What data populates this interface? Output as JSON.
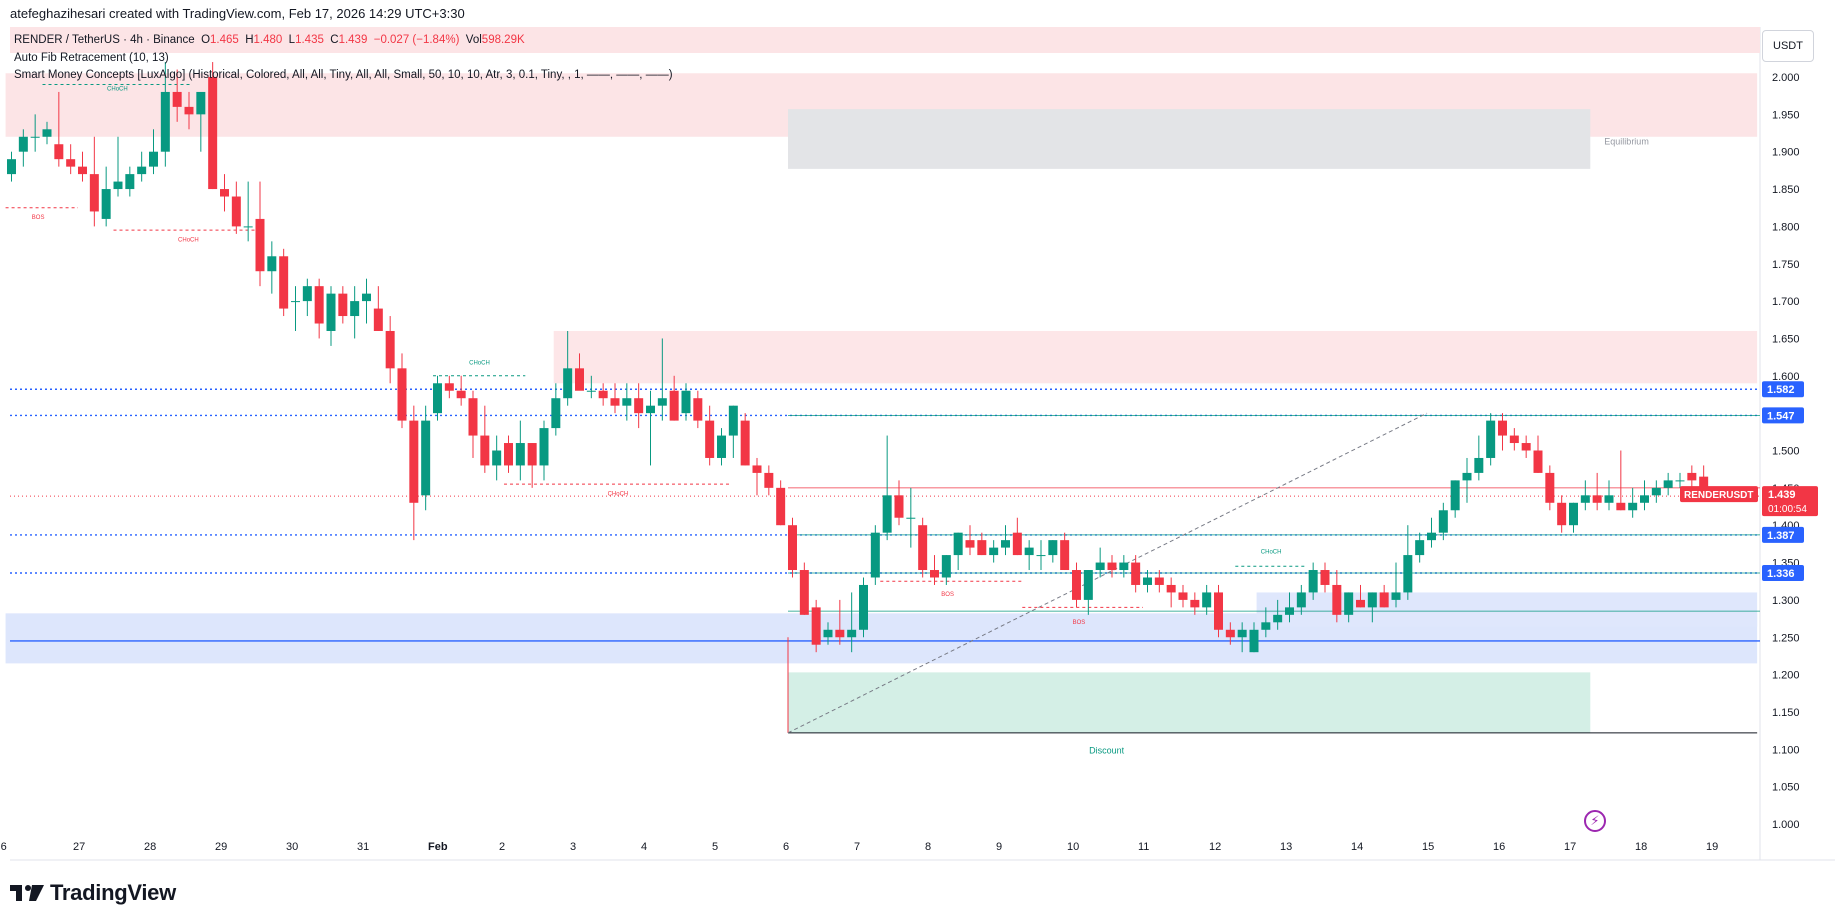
{
  "header": {
    "attribution": "atefeghazihesari created with TradingView.com, Feb 17, 2026 14:29 UTC+3:30"
  },
  "legend": {
    "symbol": "RENDER / TetherUS · 4h · Binance",
    "open_label": "O",
    "open": "1.465",
    "high_label": "H",
    "high": "1.480",
    "low_label": "L",
    "low": "1.435",
    "close_label": "C",
    "close": "1.439",
    "change": "−0.027 (−1.84%)",
    "vol_label": "Vol",
    "volume": "598.29K",
    "indicator_1": "Auto Fib Retracement (10, 13)",
    "indicator_2": "Smart Money Concepts [LuxAlgo] (Historical, Colored, All, All, Tiny, All, All, Small, 50, 10, 10, Atr, 3, 0.1, Tiny, , 1, ——, ——, ——)"
  },
  "price_axis": {
    "currency": "USDT",
    "ticks": [
      "2.000",
      "1.950",
      "1.900",
      "1.850",
      "1.800",
      "1.750",
      "1.700",
      "1.650",
      "1.600",
      "1.550",
      "1.500",
      "1.450",
      "1.400",
      "1.350",
      "1.300",
      "1.250",
      "1.200",
      "1.150",
      "1.100",
      "1.050",
      "1.000"
    ],
    "tick_values": [
      2.0,
      1.95,
      1.9,
      1.85,
      1.8,
      1.75,
      1.7,
      1.65,
      1.6,
      1.55,
      1.5,
      1.45,
      1.4,
      1.35,
      1.3,
      1.25,
      1.2,
      1.15,
      1.1,
      1.05,
      1.0
    ]
  },
  "time_axis": {
    "ticks": [
      "6",
      "27",
      "28",
      "29",
      "30",
      "31",
      "Feb",
      "2",
      "3",
      "4",
      "5",
      "6",
      "7",
      "8",
      "9",
      "10",
      "11",
      "12",
      "13",
      "14",
      "15",
      "16",
      "17",
      "18",
      "19"
    ]
  },
  "price_labels": [
    {
      "text": "1.582",
      "value": 1.582,
      "color": "#2962ff"
    },
    {
      "text": "1.547",
      "value": 1.547,
      "color": "#2962ff"
    },
    {
      "text": "1.387",
      "value": 1.387,
      "color": "#2962ff"
    },
    {
      "text": "1.336",
      "value": 1.336,
      "color": "#2962ff"
    }
  ],
  "current_price": {
    "symbol": "RENDERUSDT",
    "price": "1.439",
    "countdown": "01:00:54",
    "value": 1.439,
    "color": "#f23645"
  },
  "annotations": {
    "choch": "CHoCH",
    "bos": "BOS",
    "equilibrium": "Equilibrium",
    "discount": "Discount"
  },
  "colors": {
    "up": "#089981",
    "down": "#f23645",
    "level_line": "#2962ff",
    "premium_zone": "#f7c5c9",
    "equilibrium_zone": "#c8cad0",
    "discount_zone": "#b9e3d6",
    "demand_zone": "#b3c7f7"
  },
  "brand": {
    "name": "TradingView"
  },
  "chart_data": {
    "type": "candlestick",
    "symbol": "RENDER / TetherUS",
    "timeframe": "4h",
    "ylim": [
      0.97,
      2.06
    ],
    "day_ticks": [
      {
        "label": "6",
        "x": -0.02
      },
      {
        "label": "27",
        "x": 1
      },
      {
        "label": "28",
        "x": 2
      },
      {
        "label": "29",
        "x": 3
      },
      {
        "label": "30",
        "x": 4
      },
      {
        "label": "31",
        "x": 5
      },
      {
        "label": "Feb",
        "x": 6
      },
      {
        "label": "2",
        "x": 7
      },
      {
        "label": "3",
        "x": 8
      },
      {
        "label": "4",
        "x": 9
      },
      {
        "label": "5",
        "x": 10
      },
      {
        "label": "6",
        "x": 11
      },
      {
        "label": "7",
        "x": 12
      },
      {
        "label": "8",
        "x": 13
      },
      {
        "label": "9",
        "x": 14
      },
      {
        "label": "10",
        "x": 15
      },
      {
        "label": "11",
        "x": 16
      },
      {
        "label": "12",
        "x": 17
      },
      {
        "label": "13",
        "x": 18
      },
      {
        "label": "14",
        "x": 19
      },
      {
        "label": "15",
        "x": 20
      },
      {
        "label": "16",
        "x": 21
      },
      {
        "label": "17",
        "x": 22
      },
      {
        "label": "18",
        "x": 23
      },
      {
        "label": "19",
        "x": 24
      }
    ],
    "candles_ohlc": [
      [
        1.87,
        1.9,
        1.86,
        1.89
      ],
      [
        1.9,
        1.93,
        1.88,
        1.92
      ],
      [
        1.92,
        1.95,
        1.9,
        1.92
      ],
      [
        1.92,
        1.94,
        1.91,
        1.93
      ],
      [
        1.91,
        1.98,
        1.88,
        1.89
      ],
      [
        1.89,
        1.91,
        1.87,
        1.88
      ],
      [
        1.88,
        1.9,
        1.86,
        1.87
      ],
      [
        1.87,
        1.92,
        1.8,
        1.82
      ],
      [
        1.81,
        1.88,
        1.8,
        1.85
      ],
      [
        1.85,
        1.92,
        1.84,
        1.86
      ],
      [
        1.85,
        1.88,
        1.84,
        1.87
      ],
      [
        1.87,
        1.9,
        1.86,
        1.88
      ],
      [
        1.88,
        1.93,
        1.87,
        1.9
      ],
      [
        1.9,
        2.02,
        1.88,
        1.98
      ],
      [
        1.98,
        2.01,
        1.94,
        1.96
      ],
      [
        1.96,
        1.98,
        1.93,
        1.95
      ],
      [
        1.95,
        1.97,
        1.9,
        1.98
      ],
      [
        2.0,
        2.02,
        1.85,
        1.85
      ],
      [
        1.85,
        1.87,
        1.82,
        1.84
      ],
      [
        1.84,
        1.86,
        1.79,
        1.8
      ],
      [
        1.8,
        1.86,
        1.78,
        1.8
      ],
      [
        1.81,
        1.86,
        1.72,
        1.74
      ],
      [
        1.74,
        1.78,
        1.71,
        1.76
      ],
      [
        1.76,
        1.77,
        1.68,
        1.69
      ],
      [
        1.7,
        1.72,
        1.66,
        1.7
      ],
      [
        1.7,
        1.73,
        1.68,
        1.72
      ],
      [
        1.72,
        1.73,
        1.65,
        1.67
      ],
      [
        1.66,
        1.72,
        1.64,
        1.71
      ],
      [
        1.71,
        1.72,
        1.67,
        1.68
      ],
      [
        1.68,
        1.72,
        1.65,
        1.7
      ],
      [
        1.7,
        1.73,
        1.67,
        1.71
      ],
      [
        1.69,
        1.72,
        1.66,
        1.66
      ],
      [
        1.66,
        1.68,
        1.59,
        1.61
      ],
      [
        1.61,
        1.63,
        1.53,
        1.54
      ],
      [
        1.54,
        1.56,
        1.38,
        1.43
      ],
      [
        1.44,
        1.56,
        1.42,
        1.54
      ],
      [
        1.55,
        1.6,
        1.54,
        1.59
      ],
      [
        1.59,
        1.6,
        1.57,
        1.58
      ],
      [
        1.58,
        1.6,
        1.56,
        1.57
      ],
      [
        1.57,
        1.58,
        1.49,
        1.52
      ],
      [
        1.52,
        1.56,
        1.47,
        1.48
      ],
      [
        1.48,
        1.52,
        1.46,
        1.5
      ],
      [
        1.51,
        1.52,
        1.47,
        1.48
      ],
      [
        1.48,
        1.54,
        1.46,
        1.51
      ],
      [
        1.51,
        1.51,
        1.45,
        1.48
      ],
      [
        1.48,
        1.54,
        1.46,
        1.53
      ],
      [
        1.53,
        1.59,
        1.52,
        1.57
      ],
      [
        1.57,
        1.66,
        1.56,
        1.61
      ],
      [
        1.61,
        1.63,
        1.59,
        1.58
      ],
      [
        1.58,
        1.6,
        1.57,
        1.58
      ],
      [
        1.58,
        1.59,
        1.56,
        1.57
      ],
      [
        1.57,
        1.59,
        1.55,
        1.56
      ],
      [
        1.56,
        1.59,
        1.54,
        1.57
      ],
      [
        1.57,
        1.59,
        1.53,
        1.55
      ],
      [
        1.55,
        1.58,
        1.48,
        1.56
      ],
      [
        1.56,
        1.65,
        1.54,
        1.57
      ],
      [
        1.58,
        1.6,
        1.54,
        1.54
      ],
      [
        1.55,
        1.59,
        1.54,
        1.58
      ],
      [
        1.57,
        1.58,
        1.53,
        1.54
      ],
      [
        1.54,
        1.56,
        1.48,
        1.49
      ],
      [
        1.49,
        1.53,
        1.48,
        1.52
      ],
      [
        1.52,
        1.56,
        1.49,
        1.56
      ],
      [
        1.54,
        1.55,
        1.48,
        1.48
      ],
      [
        1.48,
        1.49,
        1.44,
        1.47
      ],
      [
        1.47,
        1.48,
        1.44,
        1.45
      ],
      [
        1.45,
        1.46,
        1.4,
        1.4
      ],
      [
        1.4,
        1.41,
        1.33,
        1.34
      ],
      [
        1.34,
        1.35,
        1.28,
        1.28
      ],
      [
        1.29,
        1.3,
        1.23,
        1.24
      ],
      [
        1.25,
        1.27,
        1.24,
        1.26
      ],
      [
        1.26,
        1.3,
        1.24,
        1.25
      ],
      [
        1.25,
        1.31,
        1.23,
        1.26
      ],
      [
        1.26,
        1.33,
        1.25,
        1.32
      ],
      [
        1.33,
        1.4,
        1.32,
        1.39
      ],
      [
        1.39,
        1.52,
        1.38,
        1.44
      ],
      [
        1.44,
        1.46,
        1.4,
        1.41
      ],
      [
        1.41,
        1.45,
        1.37,
        1.41
      ],
      [
        1.4,
        1.41,
        1.33,
        1.34
      ],
      [
        1.34,
        1.36,
        1.32,
        1.33
      ],
      [
        1.33,
        1.36,
        1.32,
        1.36
      ],
      [
        1.36,
        1.39,
        1.34,
        1.39
      ],
      [
        1.38,
        1.4,
        1.36,
        1.37
      ],
      [
        1.38,
        1.39,
        1.36,
        1.36
      ],
      [
        1.36,
        1.38,
        1.35,
        1.37
      ],
      [
        1.37,
        1.4,
        1.36,
        1.38
      ],
      [
        1.39,
        1.41,
        1.36,
        1.36
      ],
      [
        1.36,
        1.38,
        1.34,
        1.37
      ],
      [
        1.36,
        1.38,
        1.34,
        1.36
      ],
      [
        1.36,
        1.38,
        1.35,
        1.38
      ],
      [
        1.38,
        1.39,
        1.34,
        1.34
      ],
      [
        1.34,
        1.35,
        1.29,
        1.3
      ],
      [
        1.3,
        1.34,
        1.28,
        1.34
      ],
      [
        1.34,
        1.37,
        1.33,
        1.35
      ],
      [
        1.35,
        1.36,
        1.33,
        1.34
      ],
      [
        1.34,
        1.36,
        1.33,
        1.35
      ],
      [
        1.35,
        1.36,
        1.31,
        1.32
      ],
      [
        1.32,
        1.34,
        1.31,
        1.33
      ],
      [
        1.33,
        1.34,
        1.31,
        1.32
      ],
      [
        1.32,
        1.33,
        1.29,
        1.31
      ],
      [
        1.31,
        1.32,
        1.29,
        1.3
      ],
      [
        1.3,
        1.31,
        1.28,
        1.29
      ],
      [
        1.29,
        1.32,
        1.28,
        1.31
      ],
      [
        1.31,
        1.32,
        1.25,
        1.26
      ],
      [
        1.26,
        1.27,
        1.24,
        1.25
      ],
      [
        1.25,
        1.27,
        1.23,
        1.26
      ],
      [
        1.23,
        1.27,
        1.23,
        1.26
      ],
      [
        1.26,
        1.29,
        1.25,
        1.27
      ],
      [
        1.27,
        1.3,
        1.26,
        1.28
      ],
      [
        1.28,
        1.31,
        1.27,
        1.29
      ],
      [
        1.29,
        1.32,
        1.28,
        1.31
      ],
      [
        1.31,
        1.35,
        1.3,
        1.34
      ],
      [
        1.34,
        1.35,
        1.31,
        1.32
      ],
      [
        1.32,
        1.34,
        1.27,
        1.28
      ],
      [
        1.28,
        1.31,
        1.27,
        1.31
      ],
      [
        1.3,
        1.32,
        1.29,
        1.29
      ],
      [
        1.29,
        1.31,
        1.27,
        1.31
      ],
      [
        1.31,
        1.32,
        1.29,
        1.29
      ],
      [
        1.3,
        1.35,
        1.29,
        1.31
      ],
      [
        1.31,
        1.4,
        1.3,
        1.36
      ],
      [
        1.36,
        1.39,
        1.35,
        1.38
      ],
      [
        1.38,
        1.41,
        1.37,
        1.39
      ],
      [
        1.39,
        1.43,
        1.38,
        1.42
      ],
      [
        1.42,
        1.46,
        1.41,
        1.46
      ],
      [
        1.46,
        1.49,
        1.43,
        1.47
      ],
      [
        1.47,
        1.52,
        1.46,
        1.49
      ],
      [
        1.49,
        1.55,
        1.48,
        1.54
      ],
      [
        1.54,
        1.55,
        1.5,
        1.52
      ],
      [
        1.52,
        1.53,
        1.5,
        1.51
      ],
      [
        1.51,
        1.52,
        1.49,
        1.5
      ],
      [
        1.5,
        1.52,
        1.47,
        1.47
      ],
      [
        1.47,
        1.48,
        1.42,
        1.43
      ],
      [
        1.43,
        1.44,
        1.39,
        1.4
      ],
      [
        1.4,
        1.43,
        1.39,
        1.43
      ],
      [
        1.43,
        1.46,
        1.42,
        1.44
      ],
      [
        1.44,
        1.47,
        1.42,
        1.43
      ],
      [
        1.43,
        1.46,
        1.42,
        1.44
      ],
      [
        1.43,
        1.5,
        1.42,
        1.42
      ],
      [
        1.42,
        1.45,
        1.41,
        1.43
      ],
      [
        1.43,
        1.46,
        1.42,
        1.44
      ],
      [
        1.44,
        1.46,
        1.43,
        1.45
      ],
      [
        1.45,
        1.47,
        1.44,
        1.46
      ],
      [
        1.46,
        1.47,
        1.45,
        1.46
      ],
      [
        1.47,
        1.48,
        1.45,
        1.46
      ],
      [
        1.465,
        1.48,
        1.435,
        1.439
      ]
    ],
    "zones": [
      {
        "name": "premium-zone-top",
        "x0": -0.02,
        "x1": 24.65,
        "y0": 1.92,
        "y1": 2.005,
        "color": "#fce4e6"
      },
      {
        "name": "equilibrium-zone",
        "x0": 11.0,
        "x1": 22.3,
        "y0": 1.877,
        "y1": 1.957,
        "color": "#e3e4e7"
      },
      {
        "name": "supply-zone",
        "x0": 7.7,
        "x1": 24.65,
        "y0": 1.59,
        "y1": 1.66,
        "color": "#fde6e8"
      },
      {
        "name": "demand-zone-left",
        "x0": -0.02,
        "x1": 24.65,
        "y0": 1.215,
        "y1": 1.282,
        "color": "#dde6fc"
      },
      {
        "name": "demand-zone-right",
        "x0": 17.6,
        "x1": 24.65,
        "y0": 1.264,
        "y1": 1.31,
        "color": "#dfe7fc"
      },
      {
        "name": "discount-zone",
        "x0": 11.0,
        "x1": 22.3,
        "y0": 1.122,
        "y1": 1.203,
        "color": "#d4efe6"
      }
    ],
    "levels": [
      {
        "name": "level-1582",
        "y": 1.582,
        "style": "dotted",
        "color": "#2962ff"
      },
      {
        "name": "level-1547",
        "y": 1.547,
        "style": "dotted",
        "color": "#2962ff"
      },
      {
        "name": "level-1387",
        "y": 1.387,
        "style": "dotted",
        "color": "#2962ff"
      },
      {
        "name": "level-1336",
        "y": 1.336,
        "style": "dotted",
        "color": "#2962ff"
      },
      {
        "name": "level-1245",
        "y": 1.245,
        "style": "solid",
        "color": "#2962ff"
      }
    ]
  }
}
